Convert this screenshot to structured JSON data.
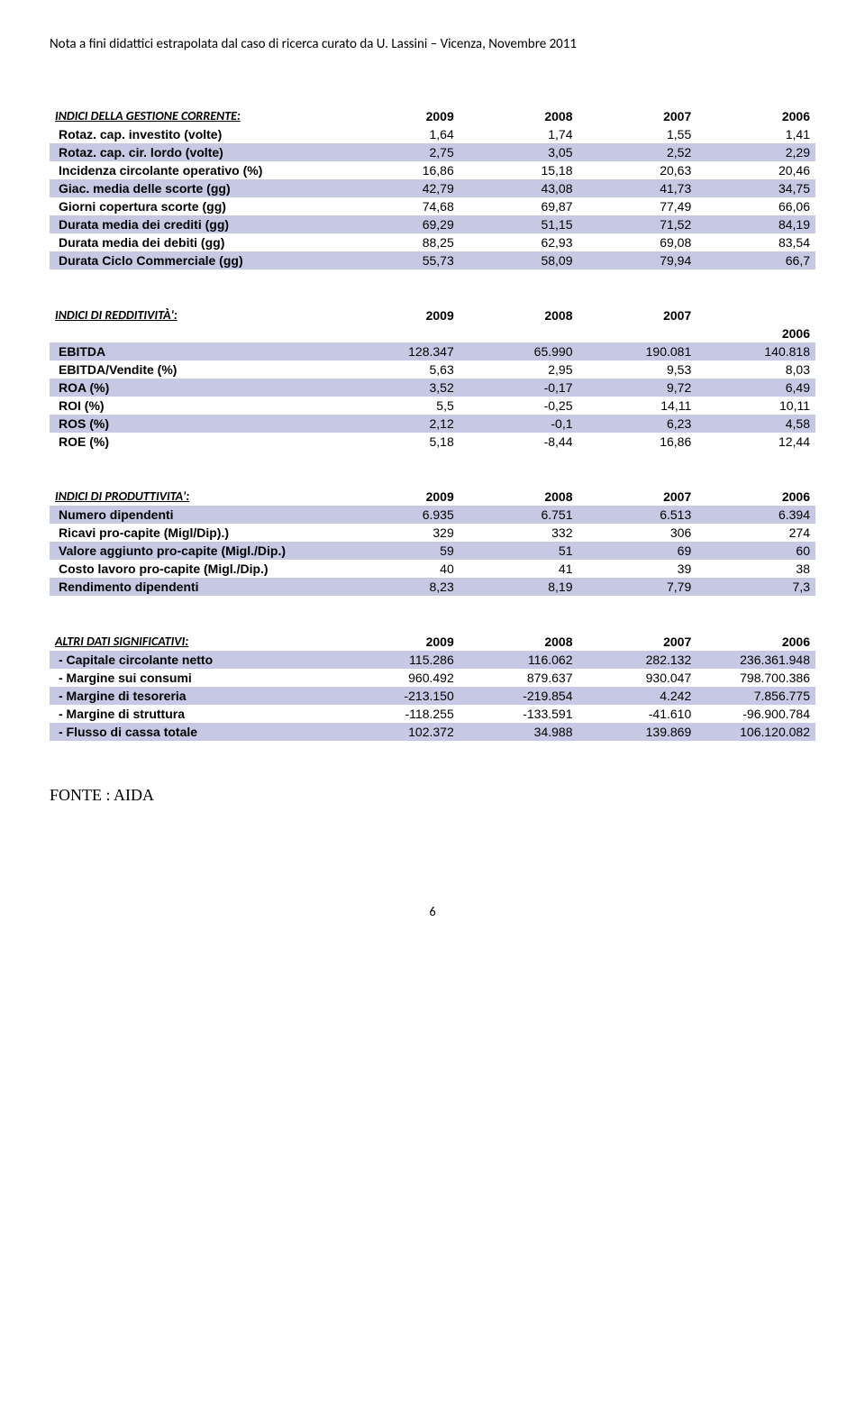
{
  "header_note": "Nota a fini didattici estrapolata dal caso di ricerca curato da U. Lassini – Vicenza, Novembre 2011",
  "sections": {
    "gestione": {
      "title": "INDICI DELLA GESTIONE CORRENTE:",
      "years": [
        "2009",
        "2008",
        "2007",
        "2006"
      ],
      "rows": [
        {
          "label": "Rotaz. cap. investito (volte)",
          "vals": [
            "1,64",
            "1,74",
            "1,55",
            "1,41"
          ],
          "shaded": false
        },
        {
          "label": "Rotaz. cap. cir. lordo (volte)",
          "vals": [
            "2,75",
            "3,05",
            "2,52",
            "2,29"
          ],
          "shaded": true
        },
        {
          "label": "Incidenza circolante operativo (%)",
          "vals": [
            "16,86",
            "15,18",
            "20,63",
            "20,46"
          ],
          "shaded": false
        },
        {
          "label": "Giac. media delle scorte (gg)",
          "vals": [
            "42,79",
            "43,08",
            "41,73",
            "34,75"
          ],
          "shaded": true
        },
        {
          "label": "Giorni copertura scorte (gg)",
          "vals": [
            "74,68",
            "69,87",
            "77,49",
            "66,06"
          ],
          "shaded": false
        },
        {
          "label": "Durata media dei crediti (gg)",
          "vals": [
            "69,29",
            "51,15",
            "71,52",
            "84,19"
          ],
          "shaded": true
        },
        {
          "label": "Durata media dei debiti (gg)",
          "vals": [
            "88,25",
            "62,93",
            "69,08",
            "83,54"
          ],
          "shaded": false
        },
        {
          "label": "Durata Ciclo Commerciale (gg)",
          "vals": [
            "55,73",
            "58,09",
            "79,94",
            "66,7"
          ],
          "shaded": true
        }
      ]
    },
    "redditivita": {
      "title": "INDICI DI REDDITIVITÀ':",
      "years": [
        "2009",
        "2008",
        "2007"
      ],
      "sub_year": "2006",
      "rows": [
        {
          "label": "EBITDA",
          "vals": [
            "128.347",
            "65.990",
            "190.081",
            "140.818"
          ],
          "shaded": true
        },
        {
          "label": "EBITDA/Vendite (%)",
          "vals": [
            "5,63",
            "2,95",
            "9,53",
            "8,03"
          ],
          "shaded": false
        },
        {
          "label": "ROA (%)",
          "vals": [
            "3,52",
            "-0,17",
            "9,72",
            "6,49"
          ],
          "shaded": true
        },
        {
          "label": "ROI (%)",
          "vals": [
            "5,5",
            "-0,25",
            "14,11",
            "10,11"
          ],
          "shaded": false
        },
        {
          "label": "ROS (%)",
          "vals": [
            "2,12",
            "-0,1",
            "6,23",
            "4,58"
          ],
          "shaded": true
        },
        {
          "label": "ROE (%)",
          "vals": [
            "5,18",
            "-8,44",
            "16,86",
            "12,44"
          ],
          "shaded": false
        }
      ]
    },
    "produttivita": {
      "title": "INDICI DI PRODUTTIVITA':",
      "years": [
        "2009",
        "2008",
        "2007",
        "2006"
      ],
      "rows": [
        {
          "label": "Numero dipendenti",
          "vals": [
            "6.935",
            "6.751",
            "6.513",
            "6.394"
          ],
          "shaded": true
        },
        {
          "label": "Ricavi pro-capite (Migl/Dip).)",
          "vals": [
            "329",
            "332",
            "306",
            "274"
          ],
          "shaded": false
        },
        {
          "label": "Valore aggiunto pro-capite (Migl./Dip.)",
          "vals": [
            "59",
            "51",
            "69",
            "60"
          ],
          "shaded": true
        },
        {
          "label": "Costo lavoro pro-capite (Migl./Dip.)",
          "vals": [
            "40",
            "41",
            "39",
            "38"
          ],
          "shaded": false
        },
        {
          "label": "Rendimento dipendenti",
          "vals": [
            "8,23",
            "8,19",
            "7,79",
            "7,3"
          ],
          "shaded": true
        }
      ]
    },
    "altri": {
      "title": "ALTRI DATI SIGNIFICATIVI:",
      "years": [
        "2009",
        "2008",
        "2007",
        "2006"
      ],
      "rows": [
        {
          "label": " - Capitale circolante netto",
          "vals": [
            "115.286",
            "116.062",
            "282.132",
            "236.361.948"
          ],
          "shaded": true
        },
        {
          "label": " - Margine sui consumi",
          "vals": [
            "960.492",
            "879.637",
            "930.047",
            "798.700.386"
          ],
          "shaded": false
        },
        {
          "label": " - Margine di tesoreria",
          "vals": [
            "-213.150",
            "-219.854",
            "4.242",
            "7.856.775"
          ],
          "shaded": true
        },
        {
          "label": " - Margine di struttura",
          "vals": [
            "-118.255",
            "-133.591",
            "-41.610",
            "-96.900.784"
          ],
          "shaded": false
        },
        {
          "label": " - Flusso di cassa totale",
          "vals": [
            "102.372",
            "34.988",
            "139.869",
            "106.120.082"
          ],
          "shaded": true
        }
      ]
    }
  },
  "source": "FONTE : AIDA",
  "page_number": "6"
}
